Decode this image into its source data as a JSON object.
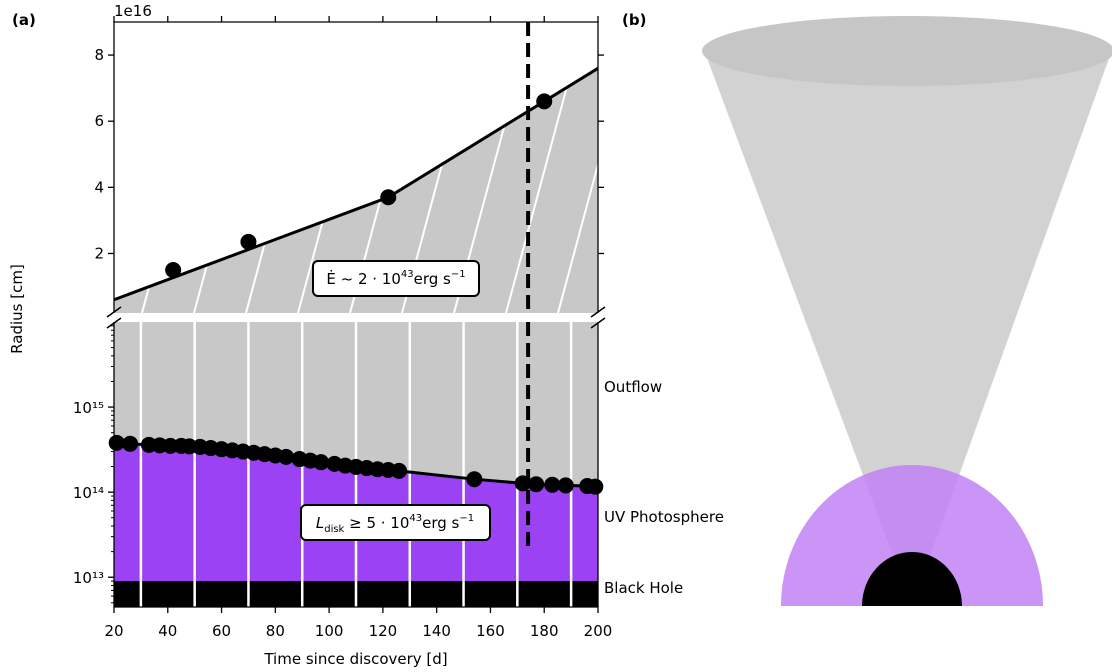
{
  "panel_a_label": "(a)",
  "panel_b_label": "(b)",
  "chart_data": {
    "type": "line",
    "xlabel": "Time since discovery [d]",
    "ylabel": "Radius [cm]",
    "xlim": [
      20,
      200
    ],
    "x_ticks": [
      "20",
      "40",
      "60",
      "80",
      "100",
      "120",
      "140",
      "160",
      "180",
      "200"
    ],
    "top_axis": {
      "scale": "linear",
      "offset_text": "1e16",
      "ylim_1e16": [
        0.2,
        9.0
      ],
      "y_ticks": [
        "2",
        "4",
        "6",
        "8"
      ],
      "outflow_points": {
        "x": [
          42,
          70,
          122,
          180
        ],
        "y_1e16": [
          1.5,
          2.35,
          3.7,
          6.6
        ]
      },
      "outflow_fit": {
        "x": [
          20,
          122,
          200
        ],
        "y_1e16": [
          0.6,
          3.7,
          7.6
        ]
      },
      "annotation": "Ė ~ 2 · 10⁴³ erg s⁻¹"
    },
    "bottom_axis": {
      "scale": "log",
      "y_ticks": [
        "10¹³",
        "10¹⁴",
        "10¹⁵"
      ],
      "photosphere_points": {
        "x": [
          21,
          26,
          33,
          37,
          41,
          45,
          48,
          52,
          56,
          60,
          64,
          68,
          72,
          76,
          80,
          84,
          89,
          93,
          97,
          102,
          106,
          110,
          114,
          118,
          122,
          126,
          154,
          172,
          177,
          183,
          188,
          196,
          199
        ],
        "y": [
          380000000000000.0,
          370000000000000.0,
          360000000000000.0,
          355000000000000.0,
          350000000000000.0,
          350000000000000.0,
          345000000000000.0,
          340000000000000.0,
          330000000000000.0,
          320000000000000.0,
          310000000000000.0,
          300000000000000.0,
          290000000000000.0,
          280000000000000.0,
          270000000000000.0,
          260000000000000.0,
          245000000000000.0,
          235000000000000.0,
          225000000000000.0,
          215000000000000.0,
          205000000000000.0,
          198000000000000.0,
          192000000000000.0,
          186000000000000.0,
          182000000000000.0,
          178000000000000.0,
          142000000000000.0,
          127000000000000.0,
          124000000000000.0,
          122000000000000.0,
          120000000000000.0,
          118000000000000.0,
          116000000000000.0
        ]
      },
      "annotation": "L_disk ≥ 5 · 10⁴³ erg s⁻¹",
      "black_hole_radius": 9000000000000.0
    },
    "vertical_marker_x": 174,
    "region_labels": [
      "Outflow",
      "UV Photosphere",
      "Black Hole"
    ],
    "colors": {
      "outflow": "#c8c8c8",
      "uv_photosphere": "#9b42f5",
      "black_hole": "#000000",
      "points": "#000000"
    }
  },
  "schematic": {
    "colors": {
      "cone": "#d2d2d2",
      "cone_top": "#c6c6c6",
      "photosphere": "#c183f5",
      "black_hole": "#000000"
    }
  }
}
